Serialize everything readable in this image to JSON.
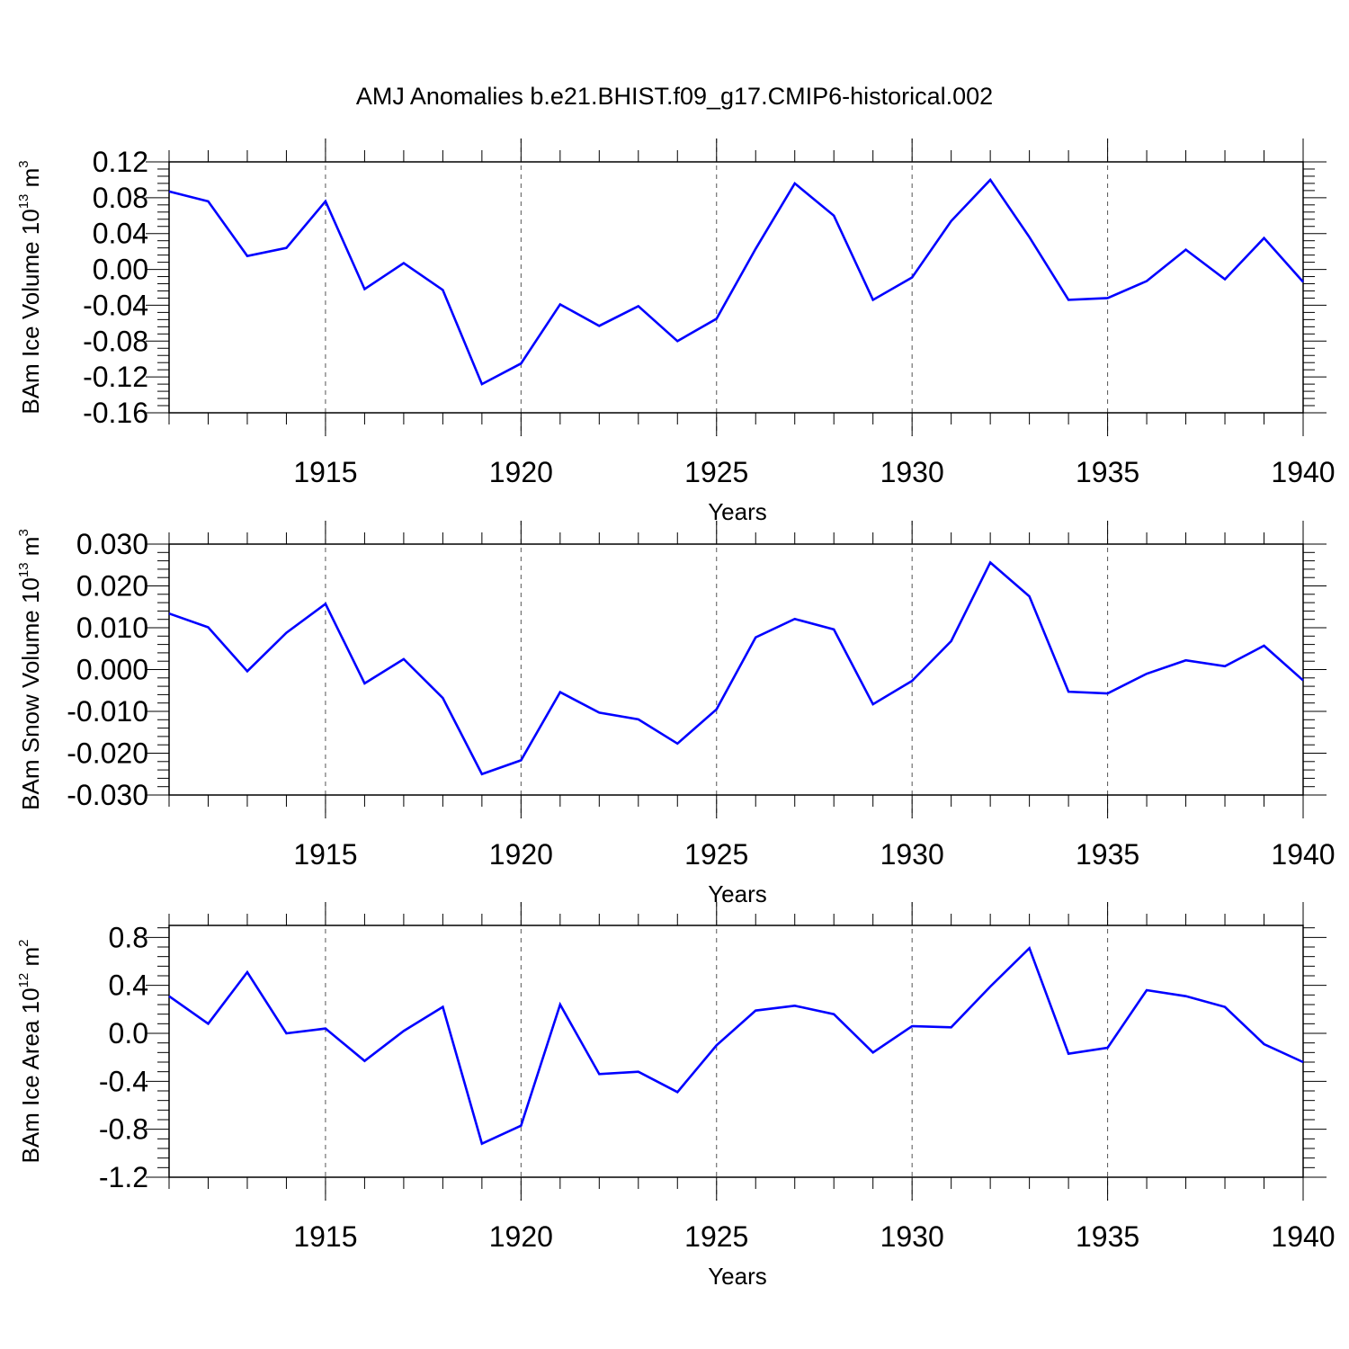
{
  "title": "AMJ Anomalies b.e21.BHIST.f09_g17.CMIP6-historical.002",
  "colors": {
    "series": "#0000ff",
    "axis": "#000000",
    "gridline": "#555555"
  },
  "chart_data": [
    {
      "type": "line",
      "ylabel_parts": {
        "base": "BAm Ice Volume 10",
        "exponent": "13",
        "unit": " m",
        "unit_exponent": "3"
      },
      "xlabel": "Years",
      "xlim": [
        1911,
        1940
      ],
      "ylim": [
        -0.16,
        0.12
      ],
      "x_major_ticks": [
        1915,
        1920,
        1925,
        1930,
        1935,
        1940
      ],
      "x_tick_labels": [
        "1915",
        "1920",
        "1925",
        "1930",
        "1935",
        "1940"
      ],
      "y_ticks": [
        -0.16,
        -0.12,
        -0.08,
        -0.04,
        0.0,
        0.04,
        0.08,
        0.12
      ],
      "y_tick_labels": [
        "-0.16",
        "-0.12",
        "-0.08",
        "-0.04",
        "0.00",
        "0.04",
        "0.08",
        "0.12"
      ],
      "x": [
        1911,
        1912,
        1913,
        1914,
        1915,
        1916,
        1917,
        1918,
        1919,
        1920,
        1921,
        1922,
        1923,
        1924,
        1925,
        1926,
        1927,
        1928,
        1929,
        1930,
        1931,
        1932,
        1933,
        1934,
        1935,
        1936,
        1937,
        1938,
        1939,
        1940
      ],
      "series": [
        {
          "name": "BAm Ice Volume",
          "values": [
            0.087,
            0.076,
            0.015,
            0.024,
            0.076,
            -0.022,
            0.007,
            -0.023,
            -0.128,
            -0.105,
            -0.039,
            -0.063,
            -0.041,
            -0.08,
            -0.055,
            0.023,
            0.096,
            0.06,
            -0.034,
            -0.009,
            0.054,
            0.1,
            0.036,
            -0.034,
            -0.032,
            -0.013,
            0.022,
            -0.011,
            0.035,
            -0.014
          ]
        }
      ]
    },
    {
      "type": "line",
      "ylabel_parts": {
        "base": "BAm Snow Volume 10",
        "exponent": "13",
        "unit": " m",
        "unit_exponent": "3"
      },
      "xlabel": "Years",
      "xlim": [
        1911,
        1940
      ],
      "ylim": [
        -0.03,
        0.03
      ],
      "x_major_ticks": [
        1915,
        1920,
        1925,
        1930,
        1935,
        1940
      ],
      "x_tick_labels": [
        "1915",
        "1920",
        "1925",
        "1930",
        "1935",
        "1940"
      ],
      "y_ticks": [
        -0.03,
        -0.02,
        -0.01,
        0.0,
        0.01,
        0.02,
        0.03
      ],
      "y_tick_labels": [
        "-0.030",
        "-0.020",
        "-0.010",
        "0.000",
        "0.010",
        "0.020",
        "0.030"
      ],
      "x": [
        1911,
        1912,
        1913,
        1914,
        1915,
        1916,
        1917,
        1918,
        1919,
        1920,
        1921,
        1922,
        1923,
        1924,
        1925,
        1926,
        1927,
        1928,
        1929,
        1930,
        1931,
        1932,
        1933,
        1934,
        1935,
        1936,
        1937,
        1938,
        1939,
        1940
      ],
      "series": [
        {
          "name": "BAm Snow Volume",
          "values": [
            0.0134,
            0.0101,
            -0.0004,
            0.0088,
            0.0157,
            -0.0033,
            0.0025,
            -0.0068,
            -0.025,
            -0.0217,
            -0.0054,
            -0.0103,
            -0.0119,
            -0.0177,
            -0.0095,
            0.0077,
            0.0121,
            0.0096,
            -0.0083,
            -0.0027,
            0.0068,
            0.0256,
            0.0175,
            -0.0053,
            -0.0057,
            -0.001,
            0.0022,
            0.0008,
            0.0057,
            -0.0026
          ]
        }
      ]
    },
    {
      "type": "line",
      "ylabel_parts": {
        "base": "BAm Ice Area 10",
        "exponent": "12",
        "unit": " m",
        "unit_exponent": "2"
      },
      "xlabel": "Years",
      "xlim": [
        1911,
        1940
      ],
      "ylim": [
        -1.2,
        0.9
      ],
      "x_major_ticks": [
        1915,
        1920,
        1925,
        1930,
        1935,
        1940
      ],
      "x_tick_labels": [
        "1915",
        "1920",
        "1925",
        "1930",
        "1935",
        "1940"
      ],
      "y_ticks": [
        -1.2,
        -0.8,
        -0.4,
        0.0,
        0.4,
        0.8
      ],
      "y_tick_labels": [
        "-1.2",
        "-0.8",
        "-0.4",
        "0.0",
        "0.4",
        "0.8"
      ],
      "x": [
        1911,
        1912,
        1913,
        1914,
        1915,
        1916,
        1917,
        1918,
        1919,
        1920,
        1921,
        1922,
        1923,
        1924,
        1925,
        1926,
        1927,
        1928,
        1929,
        1930,
        1931,
        1932,
        1933,
        1934,
        1935,
        1936,
        1937,
        1938,
        1939,
        1940
      ],
      "series": [
        {
          "name": "BAm Ice Area",
          "values": [
            0.31,
            0.08,
            0.51,
            0.0,
            0.04,
            -0.23,
            0.02,
            0.22,
            -0.92,
            -0.77,
            0.24,
            -0.34,
            -0.32,
            -0.49,
            -0.1,
            0.19,
            0.23,
            0.16,
            -0.16,
            0.06,
            0.05,
            0.39,
            0.71,
            -0.17,
            -0.12,
            0.36,
            0.31,
            0.22,
            -0.09,
            -0.24
          ]
        }
      ]
    }
  ]
}
